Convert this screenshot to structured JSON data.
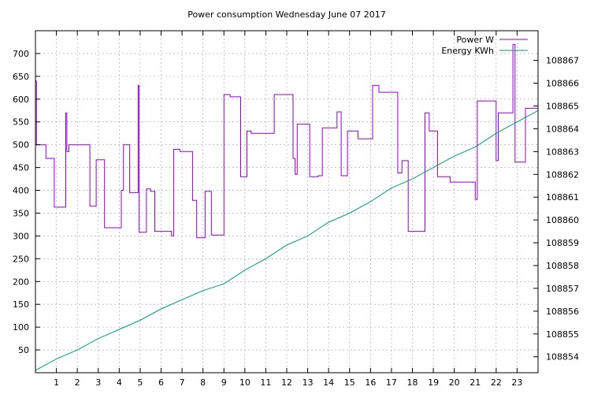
{
  "chart_data": {
    "type": "line",
    "title": "Power consumption Wednesday June 07 2017",
    "xlabel": "",
    "ylabel": "",
    "xlim": [
      0,
      24
    ],
    "ylim": [
      0,
      750
    ],
    "y2lim": [
      108853.3,
      108868.3
    ],
    "x_ticks": [
      "1",
      "2",
      "3",
      "4",
      "5",
      "6",
      "7",
      "8",
      "9",
      "10",
      "11",
      "12",
      "13",
      "14",
      "15",
      "16",
      "17",
      "18",
      "19",
      "20",
      "21",
      "22",
      "23"
    ],
    "x_tick_values": [
      1,
      2,
      3,
      4,
      5,
      6,
      7,
      8,
      9,
      10,
      11,
      12,
      13,
      14,
      15,
      16,
      17,
      18,
      19,
      20,
      21,
      22,
      23
    ],
    "y_ticks": [
      "50",
      "100",
      "150",
      "200",
      "250",
      "300",
      "350",
      "400",
      "450",
      "500",
      "550",
      "600",
      "650",
      "700"
    ],
    "y_tick_values": [
      50,
      100,
      150,
      200,
      250,
      300,
      350,
      400,
      450,
      500,
      550,
      600,
      650,
      700
    ],
    "y2_ticks": [
      "108854",
      "108855",
      "108856",
      "108857",
      "108858",
      "108859",
      "108860",
      "108861",
      "108862",
      "108863",
      "108864",
      "108865",
      "108866",
      "108867"
    ],
    "y2_tick_values": [
      108854,
      108855,
      108856,
      108857,
      108858,
      108859,
      108860,
      108861,
      108862,
      108863,
      108864,
      108865,
      108866,
      108867
    ],
    "grid": true,
    "legend_position": "top-right",
    "series": [
      {
        "name": "Power W",
        "axis": "left",
        "color": "#9400d3",
        "step": true,
        "x": [
          0,
          0.05,
          0.1,
          0.5,
          0.9,
          1.4,
          1.45,
          1.5,
          1.6,
          1.8,
          2.6,
          2.9,
          3.3,
          4.0,
          4.1,
          4.2,
          4.5,
          4.9,
          4.95,
          5.3,
          5.5,
          5.7,
          6.5,
          6.6,
          6.9,
          7.5,
          7.6,
          7.7,
          8.1,
          8.4,
          8.6,
          9.0,
          9.3,
          9.8,
          10.1,
          10.3,
          11.4,
          12.3,
          12.4,
          12.5,
          13.1,
          13.5,
          13.7,
          14.4,
          14.6,
          14.9,
          15.4,
          16.1,
          16.4,
          16.6,
          17.3,
          17.5,
          17.8,
          18.0,
          18.6,
          18.8,
          19.2,
          19.8,
          21.0,
          21.1,
          22.0,
          22.1,
          22.8,
          22.9,
          23.4,
          23.9,
          24.0
        ],
        "values": [
          640,
          500,
          500,
          470,
          363,
          363,
          570,
          485,
          500,
          500,
          365,
          467,
          318,
          318,
          400,
          500,
          395,
          630,
          308,
          403,
          398,
          310,
          300,
          490,
          485,
          378,
          378,
          296,
          398,
          302,
          302,
          610,
          605,
          430,
          530,
          525,
          610,
          470,
          435,
          545,
          430,
          432,
          537,
          572,
          432,
          530,
          513,
          630,
          615,
          615,
          438,
          465,
          310,
          310,
          570,
          530,
          430,
          418,
          380,
          596,
          465,
          570,
          720,
          462,
          580,
          580,
          580
        ]
      },
      {
        "name": "Energy KWh",
        "axis": "right",
        "color": "#009e73",
        "step": false,
        "x": [
          0,
          1,
          2,
          3,
          4,
          5,
          6,
          7,
          8,
          9,
          10,
          11,
          12,
          13,
          14,
          15,
          16,
          17,
          18,
          19,
          20,
          21,
          22,
          23,
          24
        ],
        "values": [
          108853.4,
          108853.9,
          108854.3,
          108854.8,
          108855.2,
          108855.6,
          108856.1,
          108856.5,
          108856.9,
          108857.2,
          108857.8,
          108858.3,
          108858.9,
          108859.3,
          108859.9,
          108860.3,
          108860.8,
          108861.4,
          108861.8,
          108862.3,
          108862.8,
          108863.2,
          108863.8,
          108864.3,
          108864.8
        ]
      }
    ]
  }
}
